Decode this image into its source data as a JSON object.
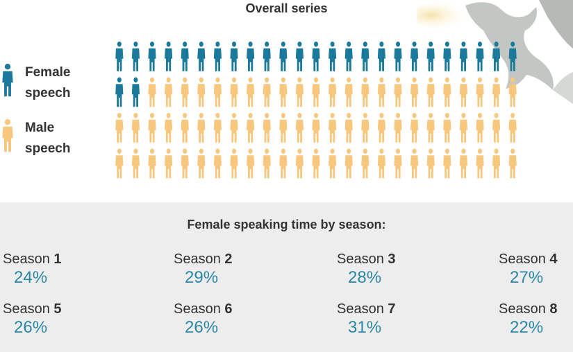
{
  "colors": {
    "female": "#1b7a9c",
    "male": "#f6c77c",
    "value_text": "#2a87a6",
    "panel_bg": "#ededed"
  },
  "header": {
    "title": "Overall series"
  },
  "legend": {
    "female": {
      "line1": "Female",
      "line2": "speech",
      "icon": "person-icon"
    },
    "male": {
      "line1": "Male",
      "line2": "speech",
      "icon": "person-icon"
    }
  },
  "chart_data": {
    "type": "waffle",
    "title": "Overall series",
    "rows": 4,
    "columns": 25,
    "total_units": 100,
    "series": [
      {
        "name": "Female speech",
        "units": 27
      },
      {
        "name": "Male speech",
        "units": 73
      }
    ]
  },
  "seasons": {
    "title": "Female speaking time by season:",
    "label_prefix": "Season",
    "items": [
      {
        "num": "1",
        "value": "24%"
      },
      {
        "num": "2",
        "value": "29%"
      },
      {
        "num": "3",
        "value": "28%"
      },
      {
        "num": "4",
        "value": "27%"
      },
      {
        "num": "5",
        "value": "26%"
      },
      {
        "num": "6",
        "value": "26%"
      },
      {
        "num": "7",
        "value": "31%"
      },
      {
        "num": "8",
        "value": "22%"
      }
    ]
  }
}
